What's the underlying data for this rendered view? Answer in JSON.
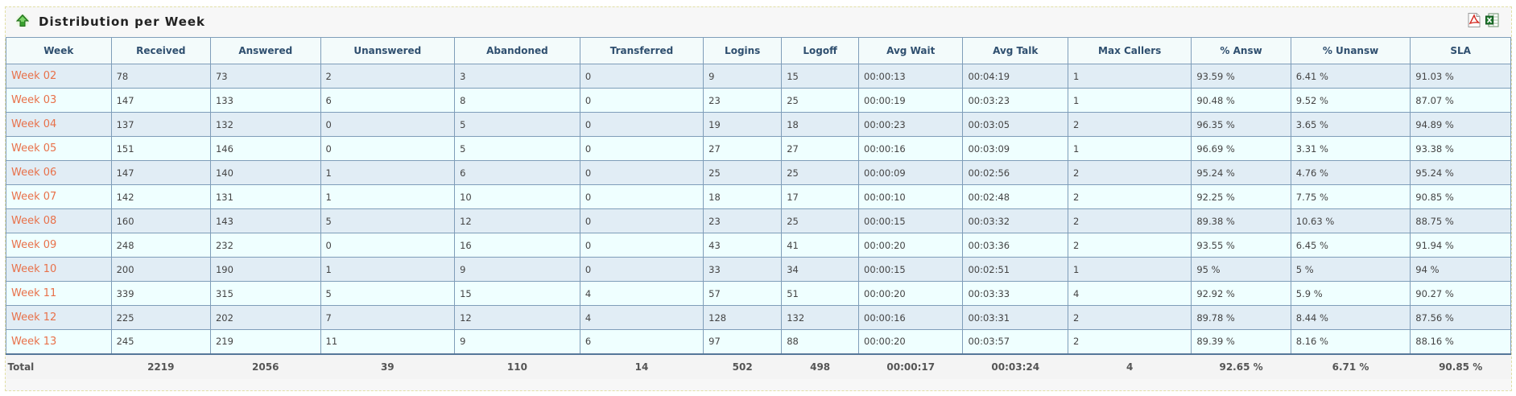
{
  "panel": {
    "title": "Distribution per Week",
    "icons": {
      "collapse": "green-up-arrow-icon",
      "pdf": "pdf-export-icon",
      "excel": "excel-export-icon"
    }
  },
  "colors": {
    "link": "#e8714a",
    "row_odd": "#e1edf5",
    "row_even": "#efffff",
    "header_text": "#2f4f6f",
    "border": "#7f9db9"
  },
  "table": {
    "headers": [
      "Week",
      "Received",
      "Answered",
      "Unanswered",
      "Abandoned",
      "Transferred",
      "Logins",
      "Logoff",
      "Avg Wait",
      "Avg Talk",
      "Max Callers",
      "% Answ",
      "% Unansw",
      "SLA"
    ],
    "rows": [
      [
        "Week 02",
        "78",
        "73",
        "2",
        "3",
        "0",
        "9",
        "15",
        "00:00:13",
        "00:04:19",
        "1",
        "93.59 %",
        "6.41 %",
        "91.03 %"
      ],
      [
        "Week 03",
        "147",
        "133",
        "6",
        "8",
        "0",
        "23",
        "25",
        "00:00:19",
        "00:03:23",
        "1",
        "90.48 %",
        "9.52 %",
        "87.07 %"
      ],
      [
        "Week 04",
        "137",
        "132",
        "0",
        "5",
        "0",
        "19",
        "18",
        "00:00:23",
        "00:03:05",
        "2",
        "96.35 %",
        "3.65 %",
        "94.89 %"
      ],
      [
        "Week 05",
        "151",
        "146",
        "0",
        "5",
        "0",
        "27",
        "27",
        "00:00:16",
        "00:03:09",
        "1",
        "96.69 %",
        "3.31 %",
        "93.38 %"
      ],
      [
        "Week 06",
        "147",
        "140",
        "1",
        "6",
        "0",
        "25",
        "25",
        "00:00:09",
        "00:02:56",
        "2",
        "95.24 %",
        "4.76 %",
        "95.24 %"
      ],
      [
        "Week 07",
        "142",
        "131",
        "1",
        "10",
        "0",
        "18",
        "17",
        "00:00:10",
        "00:02:48",
        "2",
        "92.25 %",
        "7.75 %",
        "90.85 %"
      ],
      [
        "Week 08",
        "160",
        "143",
        "5",
        "12",
        "0",
        "23",
        "25",
        "00:00:15",
        "00:03:32",
        "2",
        "89.38 %",
        "10.63 %",
        "88.75 %"
      ],
      [
        "Week 09",
        "248",
        "232",
        "0",
        "16",
        "0",
        "43",
        "41",
        "00:00:20",
        "00:03:36",
        "2",
        "93.55 %",
        "6.45 %",
        "91.94 %"
      ],
      [
        "Week 10",
        "200",
        "190",
        "1",
        "9",
        "0",
        "33",
        "34",
        "00:00:15",
        "00:02:51",
        "1",
        "95 %",
        "5 %",
        "94 %"
      ],
      [
        "Week 11",
        "339",
        "315",
        "5",
        "15",
        "4",
        "57",
        "51",
        "00:00:20",
        "00:03:33",
        "4",
        "92.92 %",
        "5.9 %",
        "90.27 %"
      ],
      [
        "Week 12",
        "225",
        "202",
        "7",
        "12",
        "4",
        "128",
        "132",
        "00:00:16",
        "00:03:31",
        "2",
        "89.78 %",
        "8.44 %",
        "87.56 %"
      ],
      [
        "Week 13",
        "245",
        "219",
        "11",
        "9",
        "6",
        "97",
        "88",
        "00:00:20",
        "00:03:57",
        "2",
        "89.39 %",
        "8.16 %",
        "88.16 %"
      ]
    ],
    "totals": [
      "Total",
      "2219",
      "2056",
      "39",
      "110",
      "14",
      "502",
      "498",
      "00:00:17",
      "00:03:24",
      "4",
      "92.65 %",
      "6.71 %",
      "90.85 %"
    ]
  }
}
